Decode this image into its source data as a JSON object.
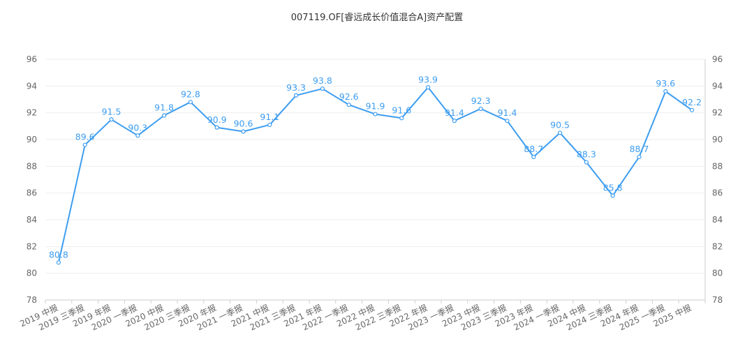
{
  "title": "007119.OF[睿远成长价值混合A]资产配置",
  "colors": {
    "line": "#3d9df0",
    "grid": "#eeeeee",
    "axis": "#cccccc",
    "text": "#666666"
  },
  "chart_data": {
    "type": "line",
    "title": "007119.OF[睿远成长价值混合A]资产配置",
    "categories": [
      "2019 中报",
      "2019 三季报",
      "2019 年报",
      "2020 一季报",
      "2020 中报",
      "2020 三季报",
      "2020 年报",
      "2021 一季报",
      "2021 中报",
      "2021 三季报",
      "2021 年报",
      "2022 一季报",
      "2022 中报",
      "2022 三季报",
      "2022 年报",
      "2023 一季报",
      "2023 中报",
      "2023 三季报",
      "2023 年报",
      "2024 一季报",
      "2024 中报",
      "2024 三季报",
      "2024 年报",
      "2025 一季报",
      "2025 中报"
    ],
    "series": [
      {
        "values": [
          80.8,
          89.6,
          91.5,
          90.3,
          91.8,
          92.8,
          90.9,
          90.6,
          91.1,
          93.3,
          93.8,
          92.6,
          91.9,
          91.6,
          93.9,
          91.4,
          92.3,
          91.4,
          88.7,
          90.5,
          88.3,
          85.8,
          88.7,
          93.6,
          92.2
        ]
      }
    ],
    "ylim": [
      78,
      96
    ],
    "yticks": [
      78,
      80,
      82,
      84,
      86,
      88,
      90,
      92,
      94,
      96
    ],
    "y_axis_both_sides": true,
    "grid": true,
    "data_labels": true
  }
}
